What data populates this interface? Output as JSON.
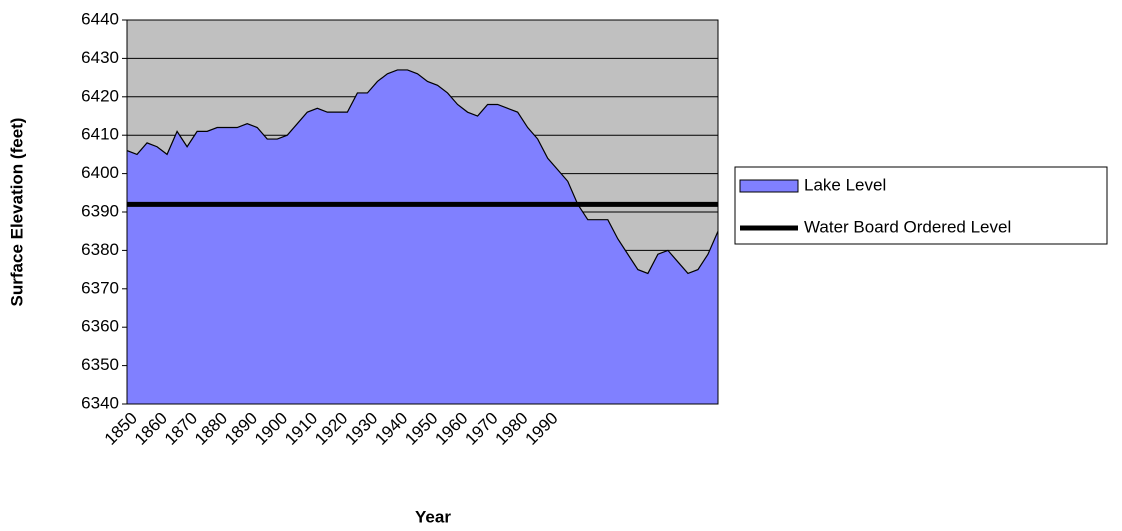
{
  "chart_data": {
    "type": "area",
    "x_label": "Year",
    "y_label": "Surface Elevation (feet)",
    "categories": [
      "1850",
      null,
      null,
      "1860",
      null,
      null,
      "1870",
      null,
      null,
      "1880",
      null,
      null,
      "1890",
      null,
      null,
      "1900",
      null,
      null,
      "1910",
      null,
      null,
      "1920",
      null,
      null,
      "1930",
      null,
      null,
      "1940",
      null,
      null,
      "1950",
      null,
      null,
      "1960",
      null,
      null,
      "1970",
      null,
      null,
      "1980",
      null,
      null,
      "1990",
      null,
      null,
      null,
      null,
      null,
      null,
      null,
      null,
      null,
      null,
      null,
      null,
      null,
      null,
      null,
      null,
      null
    ],
    "series": [
      {
        "name": "Lake Level",
        "color": "#8080ff",
        "values": [
          6406,
          6405,
          6408,
          6407,
          6405,
          6411,
          6407,
          6411,
          6411,
          6412,
          6412,
          6412,
          6413,
          6412,
          6409,
          6409,
          6410,
          6413,
          6416,
          6417,
          6416,
          6416,
          6416,
          6421,
          6421,
          6424,
          6426,
          6427,
          6427,
          6426,
          6424,
          6423,
          6421,
          6418,
          6416,
          6415,
          6418,
          6418,
          6417,
          6416,
          6412,
          6409,
          6404,
          6401,
          6398,
          6392,
          6388,
          6388,
          6388,
          6383,
          6379,
          6375,
          6374,
          6379,
          6380,
          6377,
          6374,
          6375,
          6379,
          6385
        ]
      },
      {
        "name": "Water Board Ordered Level",
        "color": "#000000",
        "type": "line",
        "values": [
          6392,
          6392,
          6392,
          6392,
          6392,
          6392,
          6392,
          6392,
          6392,
          6392,
          6392,
          6392,
          6392,
          6392,
          6392,
          6392,
          6392,
          6392,
          6392,
          6392,
          6392,
          6392,
          6392,
          6392,
          6392,
          6392,
          6392,
          6392,
          6392,
          6392,
          6392,
          6392,
          6392,
          6392,
          6392,
          6392,
          6392,
          6392,
          6392,
          6392,
          6392,
          6392,
          6392,
          6392,
          6392,
          6392,
          6392,
          6392,
          6392,
          6392,
          6392,
          6392,
          6392,
          6392,
          6392,
          6392,
          6392,
          6392,
          6392,
          6392
        ]
      }
    ],
    "ylim": [
      6340,
      6440
    ],
    "yticks": [
      6340,
      6350,
      6360,
      6370,
      6380,
      6390,
      6400,
      6410,
      6420,
      6430,
      6440
    ],
    "grid": true,
    "plot_background": "#c0c0c0",
    "legend": "right"
  }
}
